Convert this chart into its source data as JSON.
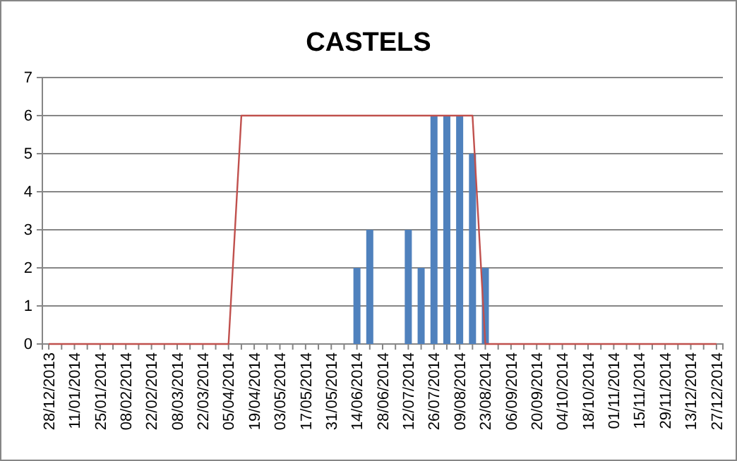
{
  "chart_data": {
    "type": "bar",
    "title": "CASTELS",
    "categories": [
      "28/12/2013",
      null,
      "11/01/2014",
      null,
      "25/01/2014",
      null,
      "08/02/2014",
      null,
      "22/02/2014",
      null,
      "08/03/2014",
      null,
      "22/03/2014",
      null,
      "05/04/2014",
      null,
      "19/04/2014",
      null,
      "03/05/2014",
      null,
      "17/05/2014",
      null,
      "31/05/2014",
      null,
      "14/06/2014",
      null,
      "28/06/2014",
      null,
      "12/07/2014",
      null,
      "26/07/2014",
      null,
      "09/08/2014",
      null,
      "23/08/2014",
      null,
      "06/09/2014",
      null,
      "20/09/2014",
      null,
      "04/10/2014",
      null,
      "18/10/2014",
      null,
      "01/11/2014",
      null,
      "15/11/2014",
      null,
      "29/11/2014",
      null,
      "13/12/2014",
      null,
      "27/12/2014"
    ],
    "series": [
      {
        "color": "#4f81bd",
        "values": [
          0,
          0,
          0,
          0,
          0,
          0,
          0,
          0,
          0,
          0,
          0,
          0,
          0,
          0,
          0,
          0,
          0,
          0,
          0,
          0,
          0,
          0,
          0,
          0,
          2,
          3,
          0,
          0,
          3,
          2,
          6,
          6,
          6,
          5,
          2,
          0,
          0,
          0,
          0,
          0,
          0,
          0,
          0,
          0,
          0,
          0,
          0,
          0,
          0,
          0,
          0,
          0,
          0
        ]
      },
      {
        "type": "line",
        "color": "#c0504d",
        "values": [
          0,
          0,
          0,
          0,
          0,
          0,
          0,
          0,
          0,
          0,
          0,
          0,
          0,
          0,
          0,
          6,
          6,
          6,
          6,
          6,
          6,
          6,
          6,
          6,
          6,
          6,
          6,
          6,
          6,
          6,
          6,
          6,
          6,
          6,
          0,
          0,
          0,
          0,
          0,
          0,
          0,
          0,
          0,
          0,
          0,
          0,
          0,
          0,
          0,
          0,
          0,
          0,
          0
        ]
      }
    ],
    "ylim": [
      0,
      7
    ],
    "yticks": [
      0,
      1,
      2,
      3,
      4,
      5,
      6,
      7
    ],
    "grid": "y"
  }
}
